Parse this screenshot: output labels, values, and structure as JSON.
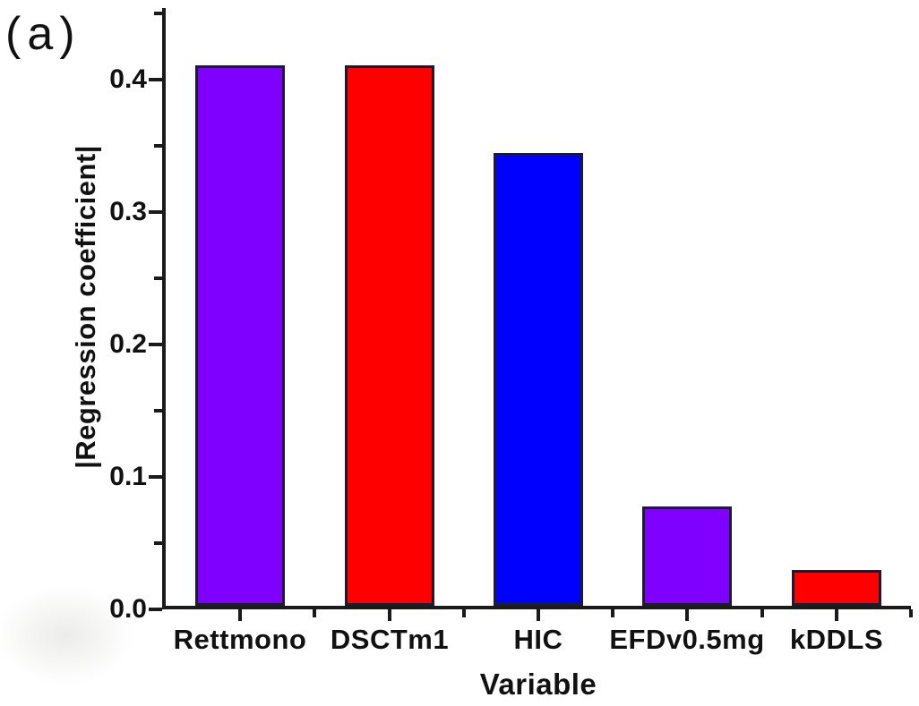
{
  "panel_label": "(a)",
  "chart_data": {
    "type": "bar",
    "title": "",
    "xlabel": "Variable",
    "ylabel": "|Regression coefficient|",
    "categories": [
      "Rettmono",
      "DSCTm1",
      "HIC",
      "EFDv0.5mg",
      "kDDLS"
    ],
    "values": [
      0.408,
      0.408,
      0.342,
      0.075,
      0.027
    ],
    "bar_colors": [
      "#8000FF",
      "#FF0000",
      "#0000FF",
      "#8000FF",
      "#FF0000"
    ],
    "bar_border_color": "#1c1c30",
    "axis_color": "#1a1a1a",
    "ylim": [
      0,
      0.45
    ],
    "yticks": [
      0.0,
      0.1,
      0.2,
      0.3,
      0.4
    ],
    "ytick_labels": [
      "0.0",
      "0.1",
      "0.2",
      "0.3",
      "0.4"
    ],
    "minor_yticks": [
      0.05,
      0.15,
      0.25,
      0.35,
      0.45
    ],
    "grid": false,
    "legend": null
  }
}
